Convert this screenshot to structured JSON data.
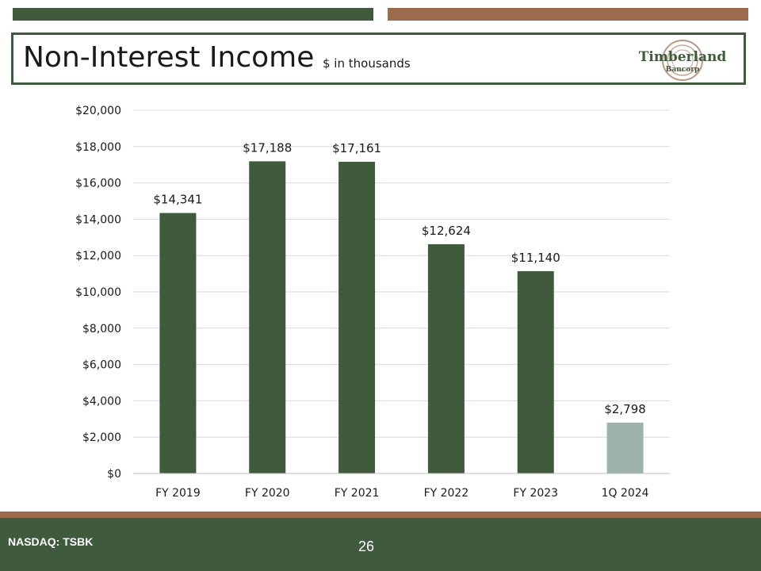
{
  "header": {
    "title": "Non-Interest Income",
    "subtitle": "$ in thousands",
    "logo_name": "Timberland",
    "logo_sub": "Bancorp"
  },
  "colors": {
    "primary_green": "#3f5a3c",
    "accent_brown": "#9c6b4e",
    "highlight_bar": "#9db3aa"
  },
  "chart_data": {
    "type": "bar",
    "categories": [
      "FY 2019",
      "FY 2020",
      "FY 2021",
      "FY 2022",
      "FY 2023",
      "1Q 2024"
    ],
    "values": [
      14341,
      17188,
      17161,
      12624,
      11140,
      2798
    ],
    "data_labels": [
      "$14,341",
      "$17,188",
      "$17,161",
      "$12,624",
      "$11,140",
      "$2,798"
    ],
    "y_ticks": [
      "$0",
      "$2,000",
      "$4,000",
      "$6,000",
      "$8,000",
      "$10,000",
      "$12,000",
      "$14,000",
      "$16,000",
      "$18,000",
      "$20,000"
    ],
    "ylim": [
      0,
      20000
    ],
    "grid": true,
    "legend": "none",
    "bar_colors": [
      "#3f5a3c",
      "#3f5a3c",
      "#3f5a3c",
      "#3f5a3c",
      "#3f5a3c",
      "#9db3aa"
    ]
  },
  "footer": {
    "ticker": "NASDAQ: TSBK",
    "page_number": "26"
  }
}
